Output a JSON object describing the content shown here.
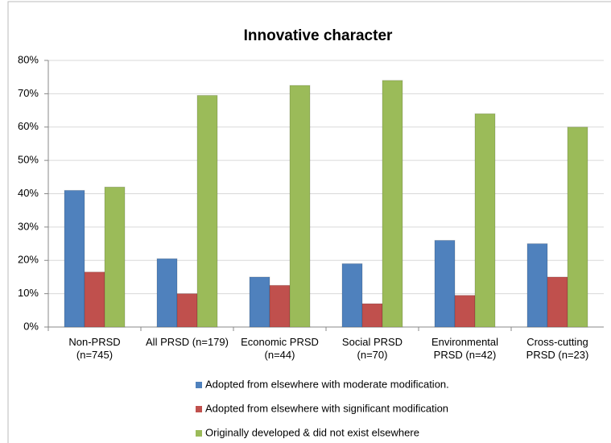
{
  "chart_data": {
    "type": "bar",
    "title": "Innovative character",
    "categories": [
      "Non-PRSD (n=745)",
      "All PRSD (n=179)",
      "Economic PRSD (n=44)",
      "Social PRSD (n=70)",
      "Environmental PRSD (n=42)",
      "Cross-cutting PRSD (n=23)"
    ],
    "series": [
      {
        "name": "Adopted from elsewhere with moderate modification.",
        "color": "#4f81bd",
        "values": [
          41,
          20.5,
          15,
          19,
          26,
          25
        ]
      },
      {
        "name": "Adopted from elsewhere with significant modification",
        "color": "#c0504d",
        "values": [
          16.5,
          10,
          12.5,
          7,
          9.5,
          15
        ]
      },
      {
        "name": "Originally developed & did not exist elsewhere",
        "color": "#9bbb59",
        "values": [
          42,
          69.5,
          72.5,
          74,
          64,
          60
        ]
      }
    ],
    "ylim": [
      0,
      80
    ],
    "yticks": [
      {
        "value": 0,
        "label": "0%"
      },
      {
        "value": 10,
        "label": "10%"
      },
      {
        "value": 20,
        "label": "20%"
      },
      {
        "value": 30,
        "label": "30%"
      },
      {
        "value": 40,
        "label": "40%"
      },
      {
        "value": 50,
        "label": "50%"
      },
      {
        "value": 60,
        "label": "60%"
      },
      {
        "value": 70,
        "label": "70%"
      },
      {
        "value": 80,
        "label": "80%"
      }
    ],
    "grid": true,
    "legend": "bottom"
  }
}
